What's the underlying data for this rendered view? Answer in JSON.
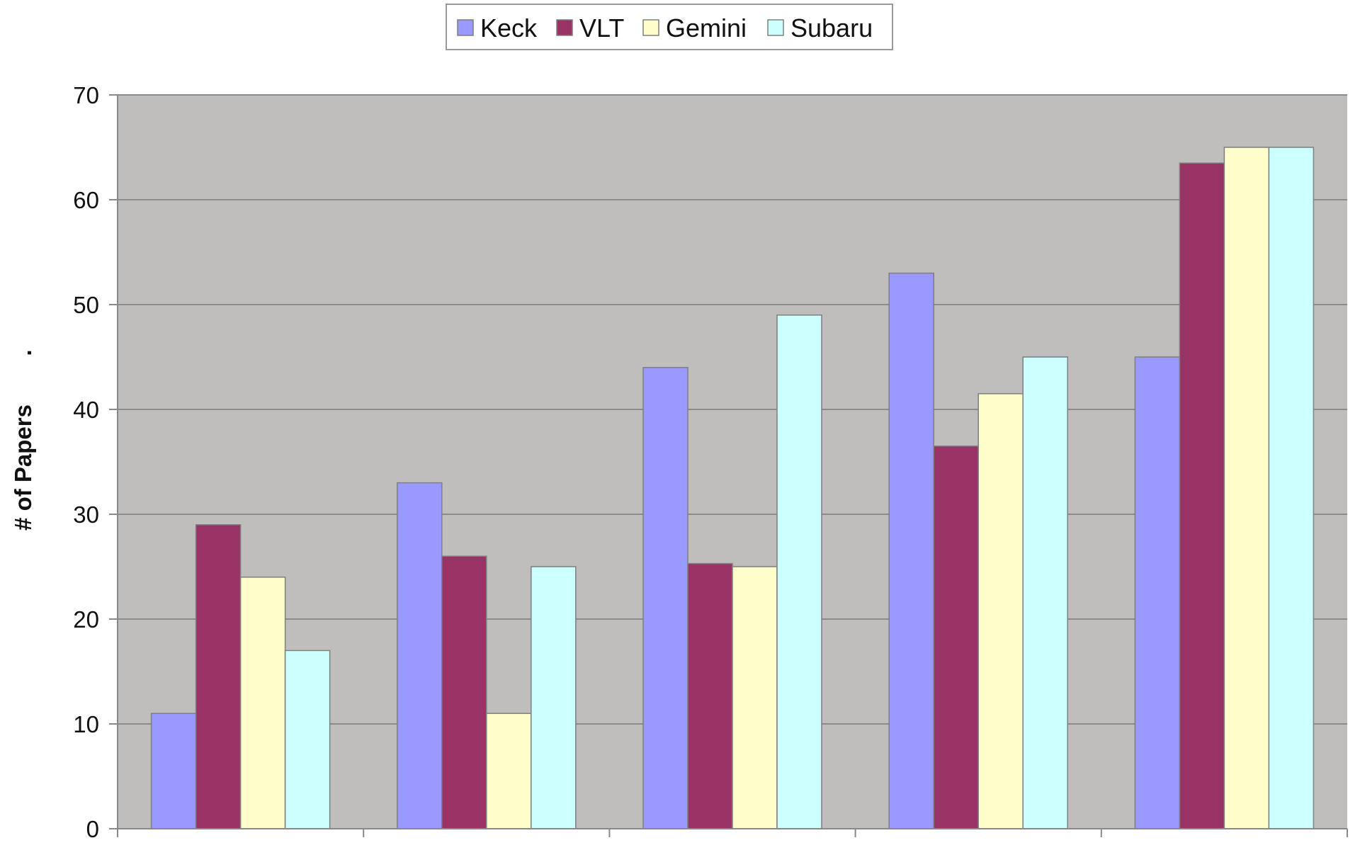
{
  "chart_data": {
    "type": "bar",
    "title": "",
    "xlabel": "",
    "ylabel": "# of Papers",
    "ylabel_suffix": ".",
    "ylim": [
      0,
      70
    ],
    "yticks": [
      0,
      10,
      20,
      30,
      40,
      50,
      60,
      70
    ],
    "grid": true,
    "legend_position": "top-center",
    "categories": [
      "",
      "",
      "",
      "",
      ""
    ],
    "series": [
      {
        "name": "Keck",
        "color": "#9999ff",
        "values": [
          11,
          33,
          44,
          53,
          45
        ]
      },
      {
        "name": "VLT",
        "color": "#993366",
        "values": [
          29,
          26,
          25.3,
          36.5,
          63.5
        ]
      },
      {
        "name": "Gemini",
        "color": "#ffffcc",
        "values": [
          24,
          11,
          25,
          41.5,
          65
        ]
      },
      {
        "name": "Subaru",
        "color": "#ccffff",
        "values": [
          17,
          25,
          49,
          45,
          65
        ]
      }
    ],
    "colors": {
      "plot_background": "#c0bdbd",
      "gridline": "#8a8a8a",
      "axis": "#888888",
      "bar_outline": "#7f7f7f"
    }
  }
}
